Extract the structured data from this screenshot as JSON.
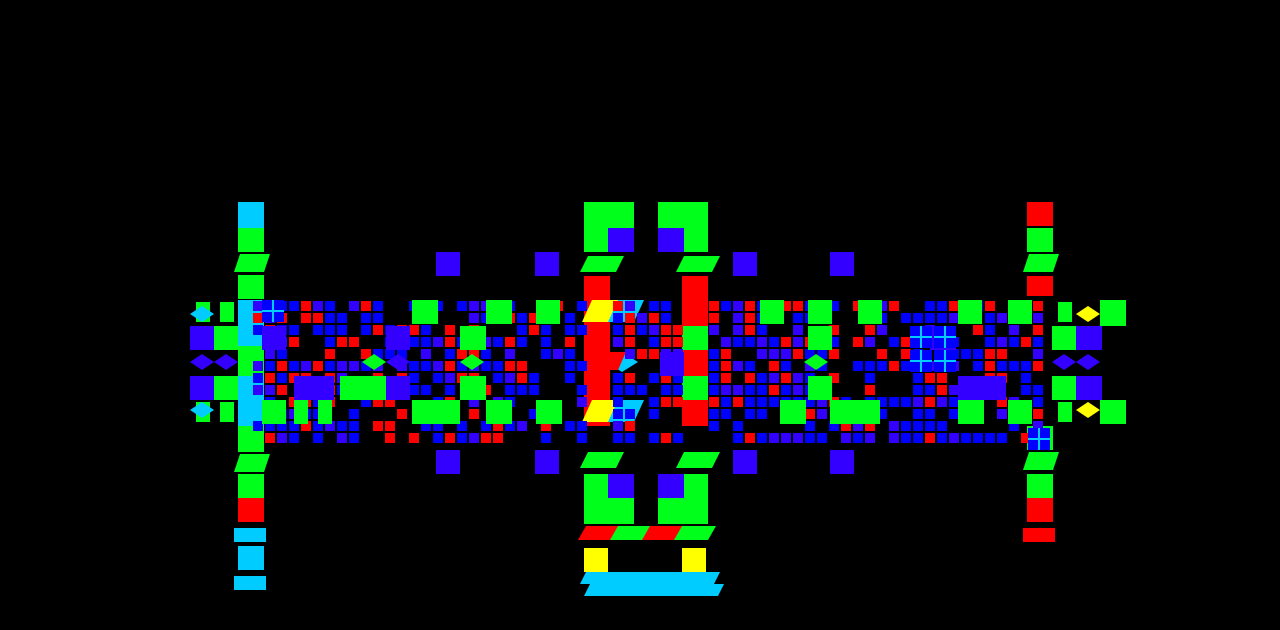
{
  "palette": {
    "background": "#000000",
    "green": "#00ff1a",
    "blue": "#0000ff",
    "violet": "#3300ff",
    "red": "#ff0000",
    "cyan": "#00ccff",
    "yellow": "#ffff00"
  },
  "scene": {
    "description_visible": false,
    "tile_colors": [
      "green",
      "blue",
      "violet",
      "red",
      "cyan",
      "yellow"
    ]
  }
}
